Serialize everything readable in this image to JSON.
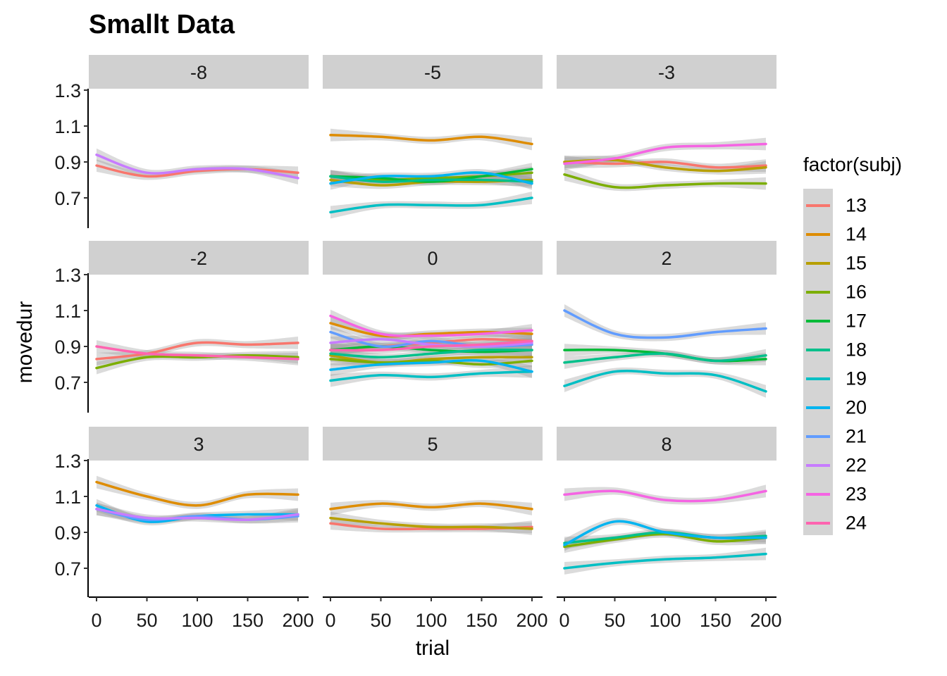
{
  "title": "Smallt Data",
  "chart_data": {
    "type": "line",
    "title": "Smallt Data",
    "xlabel": "trial",
    "ylabel": "movedur",
    "xlim": [
      0,
      200
    ],
    "ylim": [
      0.55,
      1.3
    ],
    "x_ticks": [
      0,
      50,
      100,
      150,
      200
    ],
    "y_ticks": [
      0.7,
      0.9,
      1.1,
      1.3
    ],
    "x_tick_labels": [
      "0",
      "50",
      "100",
      "150",
      "200"
    ],
    "y_tick_labels": [
      "0.7",
      "0.9",
      "1.1",
      "1.3"
    ],
    "x": [
      0,
      50,
      100,
      150,
      200
    ],
    "grid": false,
    "smooth_band": true,
    "legend": {
      "title": "factor(subj)",
      "position": "right",
      "entries": [
        {
          "name": "13",
          "color": "#F8766D"
        },
        {
          "name": "14",
          "color": "#DE8C00"
        },
        {
          "name": "15",
          "color": "#B79F00"
        },
        {
          "name": "16",
          "color": "#7CAE00"
        },
        {
          "name": "17",
          "color": "#00BA38"
        },
        {
          "name": "18",
          "color": "#00C08B"
        },
        {
          "name": "19",
          "color": "#00BFC4"
        },
        {
          "name": "20",
          "color": "#00B4F0"
        },
        {
          "name": "21",
          "color": "#619CFF"
        },
        {
          "name": "22",
          "color": "#C77CFF"
        },
        {
          "name": "23",
          "color": "#F564E3"
        },
        {
          "name": "24",
          "color": "#FF64B0"
        }
      ]
    },
    "panels": [
      {
        "label": "-8",
        "series": [
          {
            "name": "13",
            "values": [
              0.88,
              0.82,
              0.85,
              0.86,
              0.84
            ]
          },
          {
            "name": "22",
            "values": [
              0.94,
              0.84,
              0.86,
              0.86,
              0.81
            ]
          }
        ]
      },
      {
        "label": "-5",
        "series": [
          {
            "name": "14",
            "values": [
              1.05,
              1.04,
              1.02,
              1.04,
              1.0
            ]
          },
          {
            "name": "15",
            "values": [
              0.8,
              0.77,
              0.79,
              0.79,
              0.8
            ]
          },
          {
            "name": "16",
            "values": [
              0.82,
              0.8,
              0.81,
              0.82,
              0.84
            ]
          },
          {
            "name": "17",
            "values": [
              0.82,
              0.81,
              0.79,
              0.82,
              0.86
            ]
          },
          {
            "name": "18",
            "values": [
              0.82,
              0.79,
              0.8,
              0.8,
              0.79
            ]
          },
          {
            "name": "19",
            "values": [
              0.62,
              0.66,
              0.66,
              0.66,
              0.7
            ]
          },
          {
            "name": "20",
            "values": [
              0.78,
              0.82,
              0.82,
              0.84,
              0.78
            ]
          }
        ]
      },
      {
        "label": "-3",
        "series": [
          {
            "name": "13",
            "values": [
              0.9,
              0.89,
              0.9,
              0.87,
              0.88
            ]
          },
          {
            "name": "15",
            "values": [
              0.9,
              0.91,
              0.87,
              0.85,
              0.87
            ]
          },
          {
            "name": "16",
            "values": [
              0.83,
              0.76,
              0.77,
              0.78,
              0.78
            ]
          },
          {
            "name": "23",
            "values": [
              0.89,
              0.92,
              0.98,
              0.99,
              1.0
            ]
          }
        ]
      },
      {
        "label": "-2",
        "series": [
          {
            "name": "13",
            "values": [
              0.83,
              0.86,
              0.92,
              0.91,
              0.92
            ]
          },
          {
            "name": "16",
            "values": [
              0.78,
              0.84,
              0.84,
              0.85,
              0.84
            ]
          },
          {
            "name": "24",
            "values": [
              0.9,
              0.86,
              0.85,
              0.84,
              0.83
            ]
          }
        ]
      },
      {
        "label": "0",
        "series": [
          {
            "name": "13",
            "values": [
              0.88,
              0.9,
              0.92,
              0.94,
              0.93
            ]
          },
          {
            "name": "14",
            "values": [
              1.03,
              0.96,
              0.97,
              0.98,
              0.97
            ]
          },
          {
            "name": "15",
            "values": [
              0.85,
              0.81,
              0.83,
              0.84,
              0.84
            ]
          },
          {
            "name": "16",
            "values": [
              0.83,
              0.81,
              0.82,
              0.8,
              0.82
            ]
          },
          {
            "name": "17",
            "values": [
              0.88,
              0.9,
              0.88,
              0.87,
              0.88
            ]
          },
          {
            "name": "18",
            "values": [
              0.86,
              0.84,
              0.86,
              0.88,
              0.88
            ]
          },
          {
            "name": "19",
            "values": [
              0.71,
              0.74,
              0.73,
              0.75,
              0.76
            ]
          },
          {
            "name": "20",
            "values": [
              0.77,
              0.8,
              0.81,
              0.82,
              0.76
            ]
          },
          {
            "name": "21",
            "values": [
              0.98,
              0.9,
              0.93,
              0.9,
              0.91
            ]
          },
          {
            "name": "22",
            "values": [
              0.92,
              0.94,
              0.91,
              0.9,
              0.92
            ]
          },
          {
            "name": "23",
            "values": [
              1.07,
              0.97,
              0.96,
              0.97,
              0.99
            ]
          },
          {
            "name": "24",
            "values": [
              0.88,
              0.88,
              0.9,
              0.91,
              0.93
            ]
          }
        ]
      },
      {
        "label": "2",
        "series": [
          {
            "name": "17",
            "values": [
              0.88,
              0.88,
              0.86,
              0.82,
              0.83
            ]
          },
          {
            "name": "18",
            "values": [
              0.81,
              0.84,
              0.86,
              0.82,
              0.85
            ]
          },
          {
            "name": "19",
            "values": [
              0.68,
              0.76,
              0.75,
              0.74,
              0.65
            ]
          },
          {
            "name": "21",
            "values": [
              1.1,
              0.97,
              0.95,
              0.98,
              1.0
            ]
          }
        ]
      },
      {
        "label": "3",
        "series": [
          {
            "name": "14",
            "values": [
              1.18,
              1.1,
              1.05,
              1.11,
              1.11
            ]
          },
          {
            "name": "20",
            "values": [
              1.05,
              0.96,
              0.99,
              1.0,
              1.0
            ]
          },
          {
            "name": "21",
            "values": [
              1.03,
              0.97,
              0.99,
              0.97,
              0.99
            ]
          },
          {
            "name": "22",
            "values": [
              1.03,
              0.98,
              0.98,
              0.97,
              1.0
            ]
          }
        ]
      },
      {
        "label": "5",
        "series": [
          {
            "name": "13",
            "values": [
              0.95,
              0.92,
              0.92,
              0.92,
              0.93
            ]
          },
          {
            "name": "14",
            "values": [
              1.03,
              1.06,
              1.04,
              1.06,
              1.03
            ]
          },
          {
            "name": "15",
            "values": [
              0.98,
              0.95,
              0.93,
              0.93,
              0.92
            ]
          }
        ]
      },
      {
        "label": "8",
        "series": [
          {
            "name": "16",
            "values": [
              0.82,
              0.86,
              0.89,
              0.85,
              0.87
            ]
          },
          {
            "name": "18",
            "values": [
              0.84,
              0.87,
              0.9,
              0.87,
              0.88
            ]
          },
          {
            "name": "19",
            "values": [
              0.7,
              0.73,
              0.75,
              0.76,
              0.78
            ]
          },
          {
            "name": "20",
            "values": [
              0.83,
              0.96,
              0.9,
              0.87,
              0.87
            ]
          },
          {
            "name": "23",
            "values": [
              1.11,
              1.13,
              1.08,
              1.08,
              1.13
            ]
          }
        ]
      }
    ]
  }
}
